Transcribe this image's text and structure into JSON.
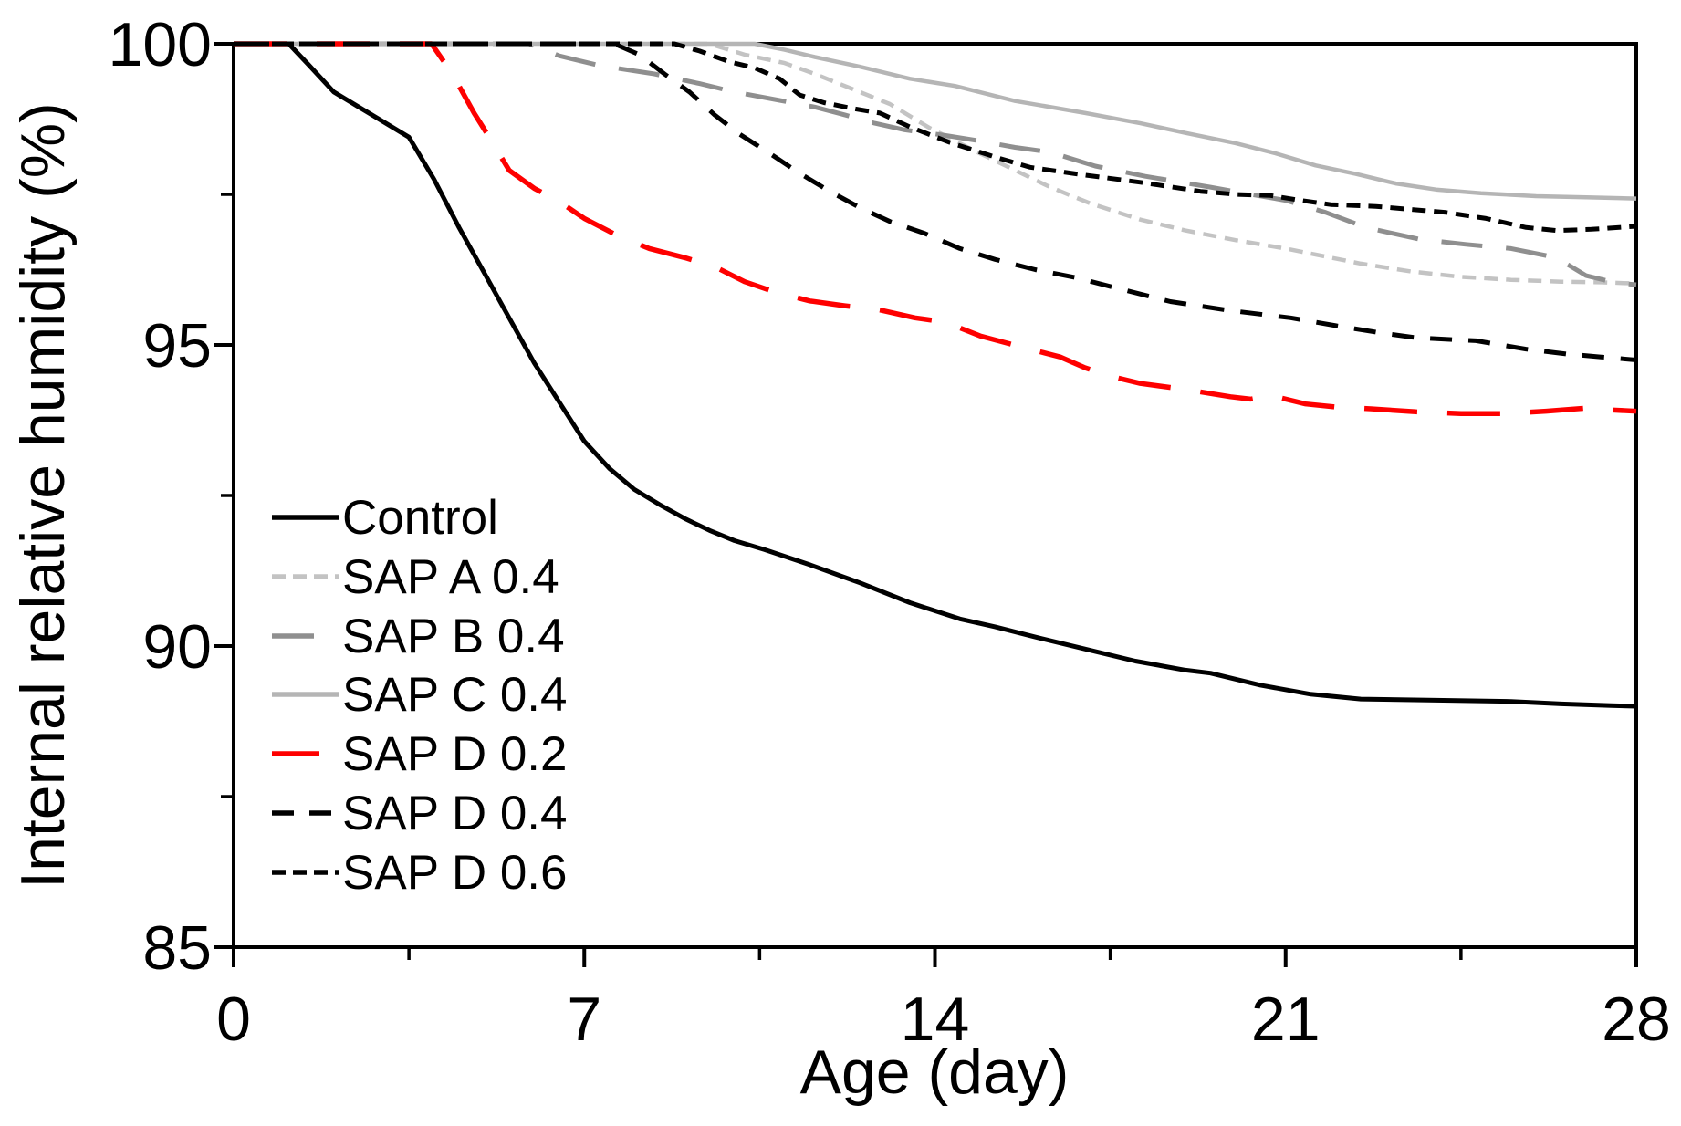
{
  "chart_data": {
    "type": "line",
    "title": "",
    "xlabel": "Age (day)",
    "ylabel": "Internal relative humidity (%)",
    "xlim": [
      0,
      28
    ],
    "ylim": [
      85,
      100
    ],
    "x_ticks_major": [
      0,
      7,
      14,
      21,
      28
    ],
    "x_ticks_minor": [
      3.5,
      10.5,
      17.5,
      24.5
    ],
    "y_ticks_major": [
      85,
      90,
      95,
      100
    ],
    "y_ticks_minor": [
      87.5,
      92.5,
      97.5
    ],
    "x_tick_labels": [
      "0",
      "7",
      "14",
      "21",
      "28"
    ],
    "y_tick_labels": [
      "85",
      "90",
      "95",
      "100"
    ],
    "grid": false,
    "legend_position": "inside-lower-left",
    "axis_color": "#000000",
    "background_color": "#ffffff",
    "series": [
      {
        "name": "Control",
        "color": "#000000",
        "line_style": "solid",
        "width": 5,
        "points": [
          [
            0,
            100
          ],
          [
            1.1,
            100
          ],
          [
            1.5,
            99.65
          ],
          [
            2,
            99.2
          ],
          [
            2.5,
            98.95
          ],
          [
            3,
            98.7
          ],
          [
            3.5,
            98.45
          ],
          [
            4,
            97.75
          ],
          [
            4.5,
            96.95
          ],
          [
            5,
            96.2
          ],
          [
            5.5,
            95.45
          ],
          [
            6,
            94.7
          ],
          [
            6.5,
            94.05
          ],
          [
            7,
            93.4
          ],
          [
            7.5,
            92.95
          ],
          [
            8,
            92.6
          ],
          [
            8.5,
            92.35
          ],
          [
            9,
            92.12
          ],
          [
            9.5,
            91.92
          ],
          [
            10,
            91.75
          ],
          [
            10.6,
            91.6
          ],
          [
            11.5,
            91.35
          ],
          [
            12.5,
            91.05
          ],
          [
            13.5,
            90.72
          ],
          [
            14.5,
            90.45
          ],
          [
            15.2,
            90.32
          ],
          [
            16,
            90.15
          ],
          [
            17,
            89.95
          ],
          [
            18,
            89.75
          ],
          [
            19,
            89.6
          ],
          [
            19.5,
            89.55
          ],
          [
            20.5,
            89.35
          ],
          [
            21.5,
            89.2
          ],
          [
            22.5,
            89.12
          ],
          [
            24,
            89.1
          ],
          [
            25.5,
            89.08
          ],
          [
            26.5,
            89.04
          ],
          [
            27.5,
            89.01
          ],
          [
            28,
            89.0
          ]
        ]
      },
      {
        "name": "SAP A 0.4",
        "color": "#c3c3c3",
        "line_style": "dash-short",
        "width": 4.5,
        "points": [
          [
            0,
            100
          ],
          [
            9.5,
            100
          ],
          [
            10.2,
            99.82
          ],
          [
            11,
            99.68
          ],
          [
            11.6,
            99.5
          ],
          [
            12.2,
            99.3
          ],
          [
            13.1,
            99.0
          ],
          [
            13.9,
            98.6
          ],
          [
            14.8,
            98.22
          ],
          [
            15.6,
            97.9
          ],
          [
            16.3,
            97.62
          ],
          [
            17.1,
            97.35
          ],
          [
            18.1,
            97.08
          ],
          [
            19,
            96.9
          ],
          [
            20,
            96.74
          ],
          [
            21,
            96.6
          ],
          [
            21.6,
            96.5
          ],
          [
            22.5,
            96.35
          ],
          [
            23.5,
            96.22
          ],
          [
            24.5,
            96.13
          ],
          [
            25.5,
            96.08
          ],
          [
            26.5,
            96.05
          ],
          [
            27.3,
            96.04
          ],
          [
            28,
            96.02
          ]
        ]
      },
      {
        "name": "SAP B 0.4",
        "color": "#8f8f8f",
        "line_style": "dash-long",
        "width": 5,
        "points": [
          [
            0,
            100
          ],
          [
            5.9,
            100
          ],
          [
            6.5,
            99.8
          ],
          [
            7.3,
            99.64
          ],
          [
            8.4,
            99.5
          ],
          [
            9.3,
            99.34
          ],
          [
            10,
            99.2
          ],
          [
            10.9,
            99.06
          ],
          [
            11.6,
            98.95
          ],
          [
            12.2,
            98.82
          ],
          [
            12.8,
            98.68
          ],
          [
            13.4,
            98.57
          ],
          [
            14.2,
            98.48
          ],
          [
            14.8,
            98.4
          ],
          [
            15.6,
            98.28
          ],
          [
            16.3,
            98.2
          ],
          [
            17.2,
            97.97
          ],
          [
            18.2,
            97.8
          ],
          [
            19.5,
            97.62
          ],
          [
            20.3,
            97.5
          ],
          [
            21,
            97.4
          ],
          [
            21.8,
            97.2
          ],
          [
            22.6,
            96.95
          ],
          [
            23.7,
            96.75
          ],
          [
            24.6,
            96.67
          ],
          [
            25.5,
            96.6
          ],
          [
            26.4,
            96.45
          ],
          [
            27,
            96.15
          ],
          [
            27.6,
            96.03
          ],
          [
            28,
            96.0
          ]
        ]
      },
      {
        "name": "SAP C 0.4",
        "color": "#b5b5b5",
        "line_style": "solid",
        "width": 4.5,
        "points": [
          [
            0,
            100
          ],
          [
            10.4,
            100
          ],
          [
            11,
            99.9
          ],
          [
            11.6,
            99.78
          ],
          [
            12.5,
            99.62
          ],
          [
            13.5,
            99.42
          ],
          [
            14.4,
            99.3
          ],
          [
            15.6,
            99.05
          ],
          [
            17,
            98.85
          ],
          [
            18.1,
            98.68
          ],
          [
            19,
            98.52
          ],
          [
            20,
            98.35
          ],
          [
            20.8,
            98.18
          ],
          [
            21.6,
            97.98
          ],
          [
            22.4,
            97.84
          ],
          [
            23.2,
            97.68
          ],
          [
            24,
            97.58
          ],
          [
            24.9,
            97.52
          ],
          [
            26,
            97.47
          ],
          [
            27,
            97.45
          ],
          [
            28,
            97.43
          ]
        ]
      },
      {
        "name": "SAP D 0.2",
        "color": "#fe0000",
        "line_style": "dash-xlong",
        "width": 5.5,
        "points": [
          [
            0,
            100
          ],
          [
            3.95,
            100
          ],
          [
            4.2,
            99.7
          ],
          [
            4.5,
            99.3
          ],
          [
            4.8,
            98.85
          ],
          [
            5.1,
            98.45
          ],
          [
            5.5,
            97.9
          ],
          [
            6,
            97.6
          ],
          [
            6.5,
            97.38
          ],
          [
            7,
            97.1
          ],
          [
            7.7,
            96.8
          ],
          [
            8.3,
            96.6
          ],
          [
            9,
            96.45
          ],
          [
            9.6,
            96.3
          ],
          [
            10.2,
            96.05
          ],
          [
            10.8,
            95.88
          ],
          [
            11.5,
            95.73
          ],
          [
            12.2,
            95.65
          ],
          [
            12.9,
            95.58
          ],
          [
            13.6,
            95.45
          ],
          [
            14.2,
            95.38
          ],
          [
            14.9,
            95.15
          ],
          [
            15.8,
            94.95
          ],
          [
            16.5,
            94.8
          ],
          [
            17,
            94.62
          ],
          [
            17.5,
            94.48
          ],
          [
            18.1,
            94.36
          ],
          [
            19,
            94.26
          ],
          [
            19.9,
            94.14
          ],
          [
            20.3,
            94.1
          ],
          [
            20.7,
            94.16
          ],
          [
            21.4,
            94.02
          ],
          [
            22,
            93.97
          ],
          [
            22.7,
            93.94
          ],
          [
            23.6,
            93.89
          ],
          [
            24.5,
            93.86
          ],
          [
            25.4,
            93.86
          ],
          [
            26.2,
            93.9
          ],
          [
            27,
            93.95
          ],
          [
            27.5,
            93.92
          ],
          [
            28,
            93.9
          ]
        ]
      },
      {
        "name": "SAP D 0.4",
        "color": "#000000",
        "line_style": "dash-medium",
        "width": 5,
        "points": [
          [
            0,
            100
          ],
          [
            7.6,
            100
          ],
          [
            8.1,
            99.82
          ],
          [
            8.6,
            99.5
          ],
          [
            9.1,
            99.2
          ],
          [
            9.6,
            98.82
          ],
          [
            10.1,
            98.5
          ],
          [
            10.7,
            98.18
          ],
          [
            11.3,
            97.85
          ],
          [
            11.9,
            97.55
          ],
          [
            12.5,
            97.28
          ],
          [
            13.1,
            97.05
          ],
          [
            13.8,
            96.85
          ],
          [
            14.5,
            96.6
          ],
          [
            15.2,
            96.42
          ],
          [
            16,
            96.25
          ],
          [
            16.8,
            96.12
          ],
          [
            17.6,
            95.95
          ],
          [
            18.7,
            95.72
          ],
          [
            19.9,
            95.57
          ],
          [
            21.1,
            95.45
          ],
          [
            22,
            95.32
          ],
          [
            22.9,
            95.2
          ],
          [
            23.6,
            95.12
          ],
          [
            24.8,
            95.07
          ],
          [
            25.8,
            94.93
          ],
          [
            26.6,
            94.85
          ],
          [
            27.3,
            94.8
          ],
          [
            28,
            94.75
          ]
        ]
      },
      {
        "name": "SAP D 0.6",
        "color": "#000000",
        "line_style": "dash-short",
        "width": 5,
        "points": [
          [
            0,
            100
          ],
          [
            8.8,
            100
          ],
          [
            9.3,
            99.88
          ],
          [
            9.9,
            99.7
          ],
          [
            10.4,
            99.6
          ],
          [
            10.9,
            99.42
          ],
          [
            11.3,
            99.15
          ],
          [
            11.8,
            99.02
          ],
          [
            12.4,
            98.92
          ],
          [
            12.9,
            98.85
          ],
          [
            13.5,
            98.62
          ],
          [
            14.3,
            98.36
          ],
          [
            15.2,
            98.12
          ],
          [
            15.9,
            97.95
          ],
          [
            16.9,
            97.83
          ],
          [
            18.1,
            97.7
          ],
          [
            19.3,
            97.55
          ],
          [
            20,
            97.5
          ],
          [
            20.7,
            97.48
          ],
          [
            21.3,
            97.4
          ],
          [
            21.9,
            97.33
          ],
          [
            22.8,
            97.3
          ],
          [
            23.5,
            97.25
          ],
          [
            24.2,
            97.2
          ],
          [
            25,
            97.1
          ],
          [
            25.8,
            96.95
          ],
          [
            26.4,
            96.9
          ],
          [
            27.1,
            96.92
          ],
          [
            28,
            96.97
          ]
        ]
      }
    ]
  }
}
